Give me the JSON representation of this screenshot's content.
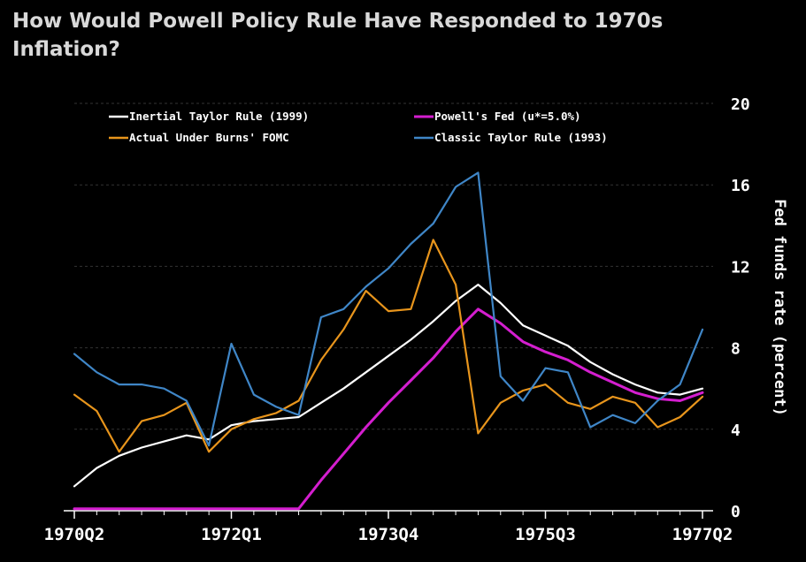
{
  "title": "How Would Powell Policy Rule Have Responded to 1970s\nInflation?",
  "colors": {
    "background": "#000000",
    "inertial": "#ffffff",
    "powell": "#d41ecf",
    "actual": "#e8951c",
    "classic": "#3f86c7",
    "grid": "#333333",
    "text": "#ffffff"
  },
  "chart_data": {
    "type": "line",
    "title": "How Would Powell Policy Rule Have Responded to 1970s Inflation?",
    "xlabel": "",
    "ylabel": "Fed funds rate (percent)",
    "ylim": [
      0,
      20
    ],
    "yticks": [
      0,
      4,
      8,
      12,
      16,
      20
    ],
    "y_axis_side": "right",
    "grid": "horizontal dashed",
    "legend_position": "top",
    "x": [
      "1970Q2",
      "1970Q3",
      "1970Q4",
      "1971Q1",
      "1971Q2",
      "1971Q3",
      "1971Q4",
      "1972Q1",
      "1972Q2",
      "1972Q3",
      "1972Q4",
      "1973Q1",
      "1973Q2",
      "1973Q3",
      "1973Q4",
      "1974Q1",
      "1974Q2",
      "1974Q3",
      "1974Q4",
      "1975Q1",
      "1975Q2",
      "1975Q3",
      "1975Q4",
      "1976Q1",
      "1976Q2",
      "1976Q3",
      "1976Q4",
      "1977Q1",
      "1977Q2"
    ],
    "xtick_labels": [
      "1970Q2",
      "1972Q1",
      "1973Q4",
      "1975Q3",
      "1977Q2"
    ],
    "series": [
      {
        "name": "Inertial Taylor Rule (1999)",
        "color_key": "inertial",
        "values": [
          1.2,
          2.1,
          2.7,
          3.1,
          3.4,
          3.7,
          3.5,
          4.2,
          4.4,
          4.5,
          4.6,
          5.3,
          6.0,
          6.8,
          7.6,
          8.4,
          9.3,
          10.3,
          11.1,
          10.2,
          9.1,
          8.6,
          8.1,
          7.3,
          6.7,
          6.2,
          5.8,
          5.7,
          6.0
        ]
      },
      {
        "name": "Powell's Fed (u*=5.0%)",
        "color_key": "powell",
        "values": [
          0.1,
          0.1,
          0.1,
          0.1,
          0.1,
          0.1,
          0.1,
          0.1,
          0.1,
          0.1,
          0.1,
          1.5,
          2.8,
          4.1,
          5.3,
          6.4,
          7.5,
          8.8,
          9.9,
          9.2,
          8.3,
          7.8,
          7.4,
          6.8,
          6.3,
          5.8,
          5.5,
          5.4,
          5.8
        ]
      },
      {
        "name": "Actual Under Burns' FOMC",
        "color_key": "actual",
        "values": [
          5.7,
          4.9,
          2.9,
          4.4,
          4.7,
          5.3,
          2.9,
          4.0,
          4.5,
          4.8,
          5.4,
          7.4,
          8.9,
          10.8,
          9.8,
          9.9,
          13.3,
          11.1,
          3.8,
          5.3,
          5.9,
          6.2,
          5.3,
          5.0,
          5.6,
          5.3,
          4.1,
          4.6,
          5.6
        ]
      },
      {
        "name": "Classic Taylor Rule (1993)",
        "color_key": "classic",
        "values": [
          7.7,
          6.8,
          6.2,
          6.2,
          6.0,
          5.4,
          3.2,
          8.2,
          5.7,
          5.1,
          4.7,
          9.5,
          9.9,
          11.0,
          11.9,
          13.1,
          14.1,
          15.9,
          16.6,
          6.6,
          5.4,
          7.0,
          6.8,
          4.1,
          4.7,
          4.3,
          5.4,
          6.2,
          8.9
        ]
      }
    ]
  }
}
